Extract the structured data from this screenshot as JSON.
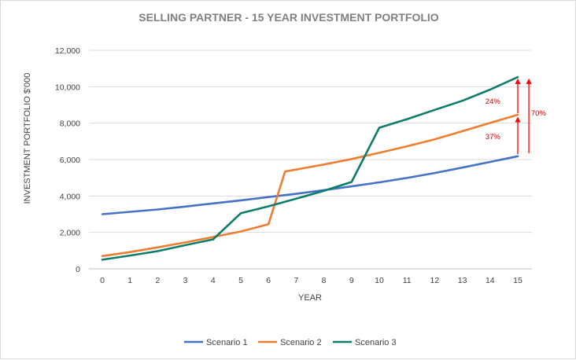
{
  "chart_data": {
    "type": "line",
    "title": "SELLING PARTNER - 15 YEAR INVESTMENT PORTFOLIO",
    "xlabel": "YEAR",
    "ylabel": "INVESTMENT PORTFOLIO $'000",
    "x": [
      0,
      1,
      2,
      3,
      4,
      5,
      6,
      7,
      8,
      9,
      10,
      11,
      12,
      13,
      14,
      15
    ],
    "x_tick_labels": [
      "0",
      "1",
      "2",
      "3",
      "4",
      "5",
      "6",
      "7",
      "8",
      "9",
      "10",
      "11",
      "12",
      "13",
      "14",
      "15"
    ],
    "ylim": [
      0,
      12000
    ],
    "y_tick_labels": [
      "0",
      "2,000",
      "4,000",
      "6,000",
      "8,000",
      "10,000",
      "12,000"
    ],
    "grid": "horizontal",
    "legend_position": "bottom",
    "series": [
      {
        "name": "Scenario 1",
        "color": "#4472c4",
        "points": [
          [
            0,
            3000
          ],
          [
            1,
            3130
          ],
          [
            2,
            3260
          ],
          [
            3,
            3420
          ],
          [
            4,
            3590
          ],
          [
            5,
            3760
          ],
          [
            6,
            3940
          ],
          [
            7,
            4120
          ],
          [
            8,
            4320
          ],
          [
            9,
            4530
          ],
          [
            10,
            4750
          ],
          [
            11,
            4990
          ],
          [
            12,
            5260
          ],
          [
            13,
            5560
          ],
          [
            14,
            5870
          ],
          [
            15,
            6180
          ]
        ]
      },
      {
        "name": "Scenario 2",
        "color": "#ed7d31",
        "points": [
          [
            0,
            700
          ],
          [
            1,
            920
          ],
          [
            2,
            1180
          ],
          [
            3,
            1450
          ],
          [
            4,
            1750
          ],
          [
            5,
            2050
          ],
          [
            6,
            2450
          ],
          [
            6.6,
            5350
          ],
          [
            7,
            5450
          ],
          [
            8,
            5730
          ],
          [
            9,
            6030
          ],
          [
            10,
            6370
          ],
          [
            11,
            6730
          ],
          [
            12,
            7110
          ],
          [
            13,
            7560
          ],
          [
            14,
            8010
          ],
          [
            15,
            8460
          ]
        ]
      },
      {
        "name": "Scenario 3",
        "color": "#0e7c6b",
        "points": [
          [
            0,
            500
          ],
          [
            1,
            730
          ],
          [
            2,
            970
          ],
          [
            3,
            1300
          ],
          [
            4,
            1620
          ],
          [
            5,
            3050
          ],
          [
            6,
            3430
          ],
          [
            7,
            3850
          ],
          [
            8,
            4280
          ],
          [
            9,
            4770
          ],
          [
            10,
            7750
          ],
          [
            11,
            8220
          ],
          [
            12,
            8730
          ],
          [
            13,
            9230
          ],
          [
            14,
            9840
          ],
          [
            15,
            10530
          ]
        ]
      }
    ],
    "annotations": [
      {
        "text": "24%",
        "x": 14.1,
        "y": 9200
      },
      {
        "text": "37%",
        "x": 14.1,
        "y": 7250
      },
      {
        "text": "70%",
        "x": 15.75,
        "y": 8550
      }
    ],
    "arrows": [
      {
        "x": 15,
        "y_from": 8550,
        "y_to": 10450
      },
      {
        "x": 15,
        "y_from": 6300,
        "y_to": 8350
      },
      {
        "x": 15.4,
        "y_from": 6350,
        "y_to": 10450
      }
    ],
    "arrow_color": "#ff0000"
  }
}
